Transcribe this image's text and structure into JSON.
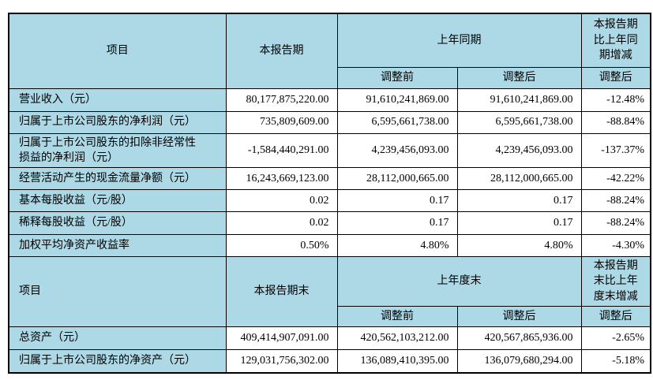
{
  "colors": {
    "header_bg": "#add8e6",
    "border": "#000000",
    "cell_bg": "#ffffff",
    "text": "#000000",
    "page_bg": "#ffffff"
  },
  "sections": [
    {
      "header": {
        "item": "项目",
        "period": "本报告期",
        "prior_period": "上年同期",
        "change": "本报告期比上年同期增减",
        "sub_before": "调整前",
        "sub_after": "调整后",
        "sub_change_after": "调整后"
      },
      "rows": [
        {
          "label": "营业收入（元）",
          "current": "80,177,875,220.00",
          "before": "91,610,241,869.00",
          "after": "91,610,241,869.00",
          "change": "-12.48%"
        },
        {
          "label": "归属于上市公司股东的净利润（元）",
          "current": "735,809,609.00",
          "before": "6,595,661,738.00",
          "after": "6,595,661,738.00",
          "change": "-88.84%"
        },
        {
          "label": "归属于上市公司股东的扣除非经常性损益的净利润（元）",
          "current": "-1,584,440,291.00",
          "before": "4,239,456,093.00",
          "after": "4,239,456,093.00",
          "change": "-137.37%"
        },
        {
          "label": "经营活动产生的现金流量净额（元）",
          "current": "16,243,669,123.00",
          "before": "28,112,000,665.00",
          "after": "28,112,000,665.00",
          "change": "-42.22%"
        },
        {
          "label": "基本每股收益（元/股）",
          "current": "0.02",
          "before": "0.17",
          "after": "0.17",
          "change": "-88.24%"
        },
        {
          "label": "稀释每股收益（元/股）",
          "current": "0.02",
          "before": "0.17",
          "after": "0.17",
          "change": "-88.24%"
        },
        {
          "label": "加权平均净资产收益率",
          "current": "0.50%",
          "before": "4.80%",
          "after": "4.80%",
          "change": "-4.30%"
        }
      ]
    },
    {
      "header": {
        "item": "项目",
        "period": "本报告期末",
        "prior_period": "上年度末",
        "change": "本报告期末比上年度末增减",
        "sub_before": "调整前",
        "sub_after": "调整后",
        "sub_change_after": "调整后"
      },
      "rows": [
        {
          "label": "总资产（元）",
          "current": "409,414,907,091.00",
          "before": "420,562,103,212.00",
          "after": "420,567,865,936.00",
          "change": "-2.65%"
        },
        {
          "label": "归属于上市公司股东的净资产（元）",
          "current": "129,031,756,302.00",
          "before": "136,089,410,395.00",
          "after": "136,079,680,294.00",
          "change": "-5.18%"
        }
      ]
    }
  ]
}
